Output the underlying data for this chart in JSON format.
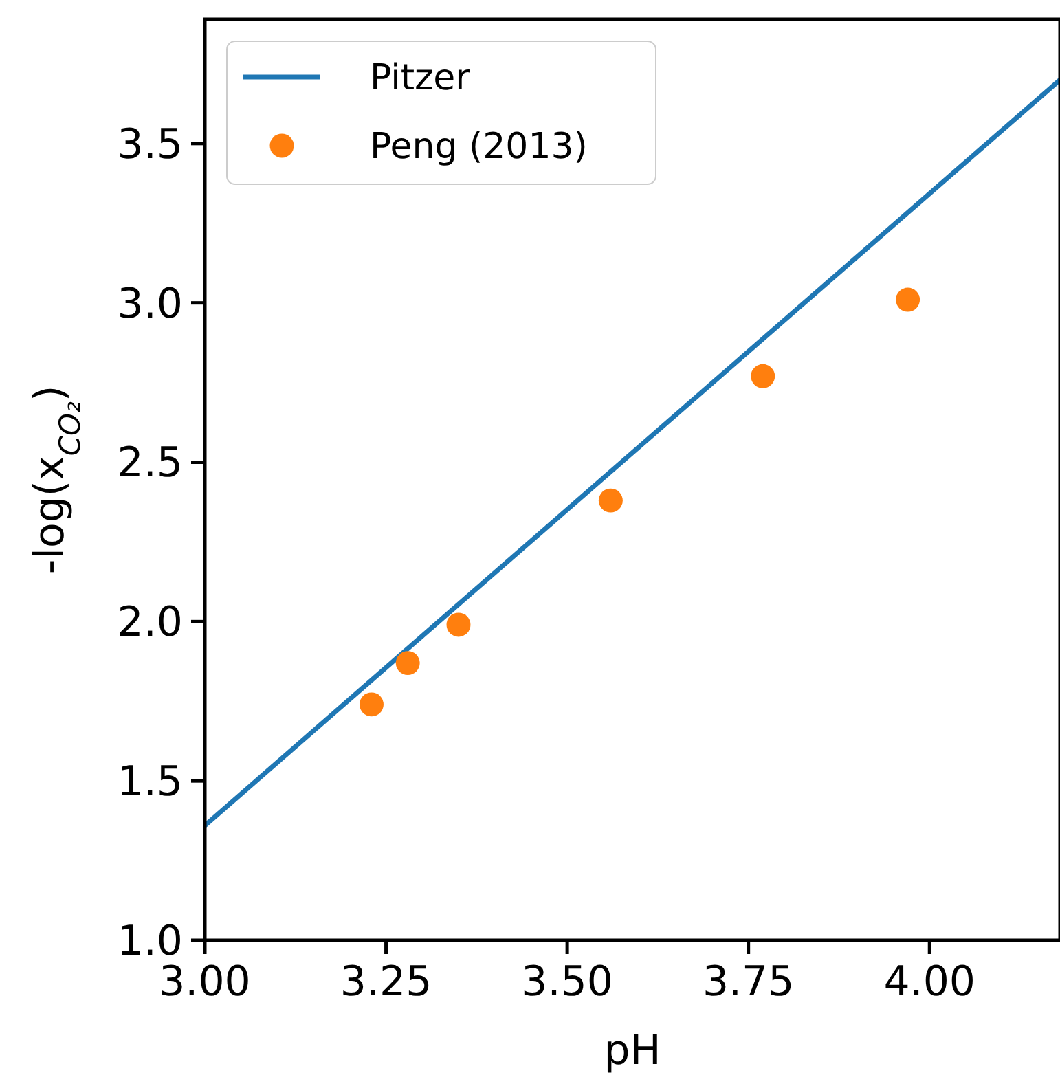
{
  "chart_data": {
    "type": "scatter",
    "xlabel": "pH",
    "ylabel": "-log(x$_{CO₂}$)",
    "xlim": [
      3.0,
      4.18
    ],
    "ylim": [
      1.0,
      3.89
    ],
    "xticks": [
      {
        "value": 3.0,
        "label": "3.00"
      },
      {
        "value": 3.25,
        "label": "3.25"
      },
      {
        "value": 3.5,
        "label": "3.50"
      },
      {
        "value": 3.75,
        "label": "3.75"
      },
      {
        "value": 4.0,
        "label": "4.00"
      }
    ],
    "yticks": [
      {
        "value": 1.0,
        "label": "1.0"
      },
      {
        "value": 1.5,
        "label": "1.5"
      },
      {
        "value": 2.0,
        "label": "2.0"
      },
      {
        "value": 2.5,
        "label": "2.5"
      },
      {
        "value": 3.0,
        "label": "3.0"
      },
      {
        "value": 3.5,
        "label": "3.5"
      }
    ],
    "legend": "top left",
    "series": [
      {
        "name": "Pitzer",
        "type": "line",
        "color": "#1f77b4",
        "x": [
          3.0,
          4.18
        ],
        "values": [
          1.36,
          3.7
        ],
        "line_style": "solid"
      },
      {
        "name": "Peng (2013)",
        "marker": "circle",
        "color": "#ff7f0e",
        "x": [
          3.23,
          3.28,
          3.35,
          3.56,
          3.77,
          3.97
        ],
        "values": [
          1.74,
          1.87,
          1.99,
          2.38,
          2.77,
          3.01
        ]
      }
    ]
  }
}
